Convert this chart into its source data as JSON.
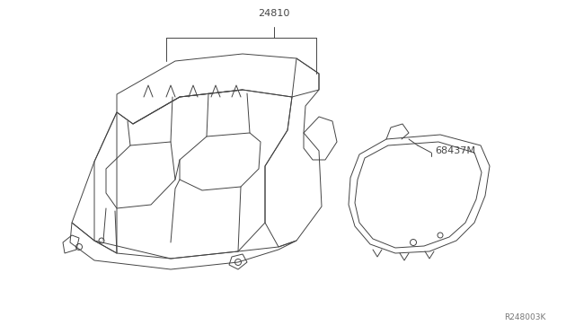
{
  "bg_color": "#ffffff",
  "line_color": "#444444",
  "label_24810": "24810",
  "label_68437M": "68437M",
  "label_ref": "R248003K",
  "fig_width": 6.4,
  "fig_height": 3.72,
  "dpi": 100
}
